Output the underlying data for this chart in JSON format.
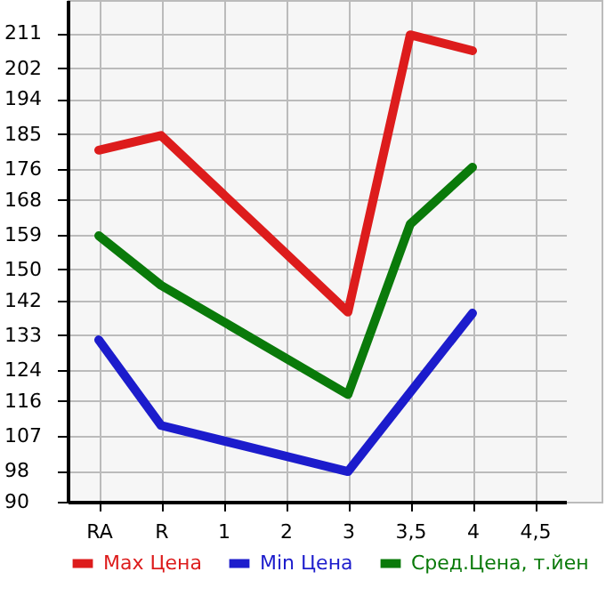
{
  "chart_data": {
    "type": "line",
    "categories": [
      "RA",
      "R",
      "1",
      "2",
      "3",
      "3,5",
      "4",
      "4,5"
    ],
    "series": [
      {
        "name": "Max Цена",
        "color": "#dd1c1c",
        "values": [
          180.8,
          184.6,
          null,
          null,
          139,
          210.6,
          206.5,
          null
        ]
      },
      {
        "name": "Min Цена",
        "color": "#1c1ccc",
        "values": [
          131.8,
          109.7,
          null,
          null,
          97.8,
          null,
          138.7,
          null
        ]
      },
      {
        "name": "Сред.Цена, т.йен",
        "color": "#0a7a0a",
        "values": [
          158.7,
          145.9,
          null,
          null,
          117.7,
          161.7,
          176.4,
          null
        ]
      }
    ],
    "ylim": [
      90,
      219.6
    ],
    "yticks": [
      90,
      98,
      107,
      116,
      124,
      133,
      142,
      150,
      159,
      168,
      176,
      185,
      194,
      202,
      211
    ],
    "grid": true,
    "legend": "bottom",
    "marker": "none",
    "line_style": "solid"
  }
}
